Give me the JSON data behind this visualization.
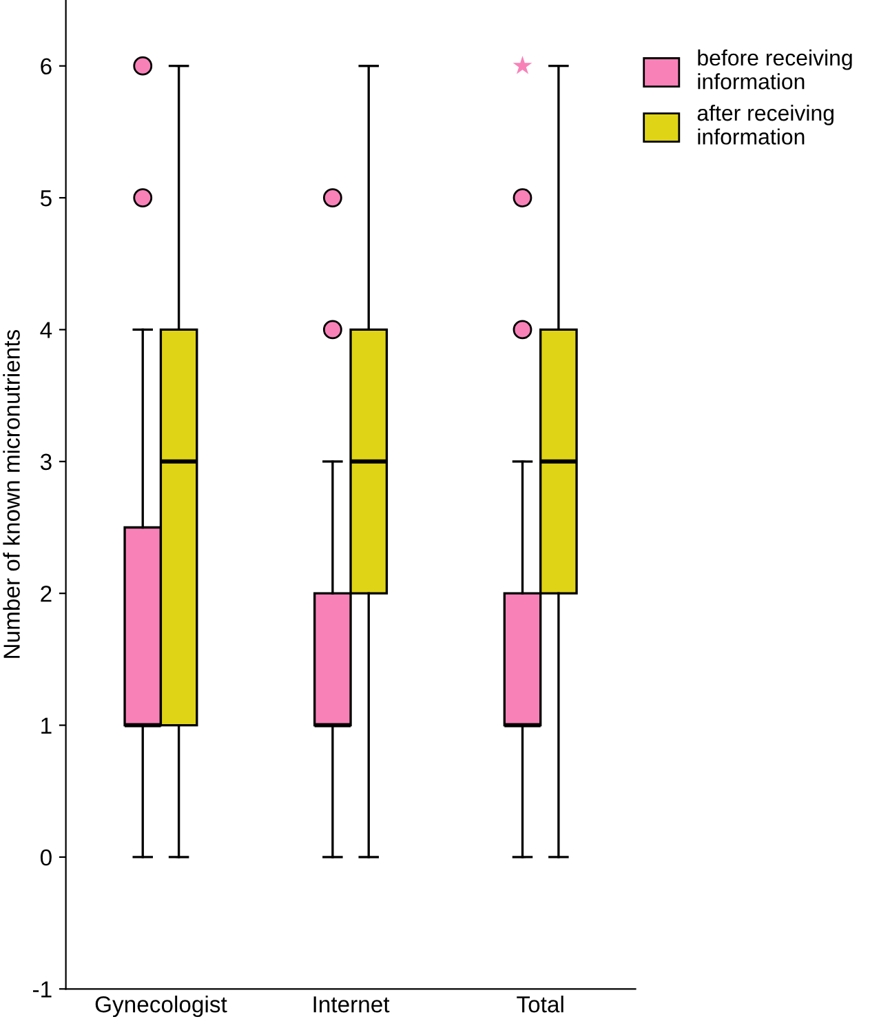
{
  "chart_data": {
    "type": "box",
    "ylabel": "Number of known micronutrients",
    "categories": [
      "Gynecologist",
      "Internet",
      "Total"
    ],
    "ylim": [
      -1,
      6.5
    ],
    "yticks": [
      -1,
      0,
      1,
      2,
      3,
      4,
      5,
      6
    ],
    "grid": false,
    "legend": "top right",
    "series": [
      {
        "name": "before receiving information",
        "color": "#f882b8",
        "boxes": [
          {
            "low": 0,
            "q1": 1,
            "median": 1,
            "q3": 2.5,
            "high": 4,
            "outliers": [
              5,
              6
            ]
          },
          {
            "low": 0,
            "q1": 1,
            "median": 1,
            "q3": 2,
            "high": 3,
            "outliers": [
              4,
              5
            ]
          },
          {
            "low": 0,
            "q1": 1,
            "median": 1,
            "q3": 2,
            "high": 3,
            "outliers": [
              4,
              5
            ]
          }
        ]
      },
      {
        "name": "after receiving information",
        "color": "#e0d416",
        "boxes": [
          {
            "low": 0,
            "q1": 1,
            "median": 3,
            "q3": 4,
            "high": 6
          },
          {
            "low": 0,
            "q1": 2,
            "median": 3,
            "q3": 4,
            "high": 6
          },
          {
            "low": 0,
            "q1": 2,
            "median": 3,
            "q3": 4,
            "high": 6
          }
        ]
      },
      {
        "type": "scatter",
        "marker": "star",
        "color": "#f882b8",
        "x": [
          "Total"
        ],
        "values": [
          6
        ]
      }
    ]
  }
}
